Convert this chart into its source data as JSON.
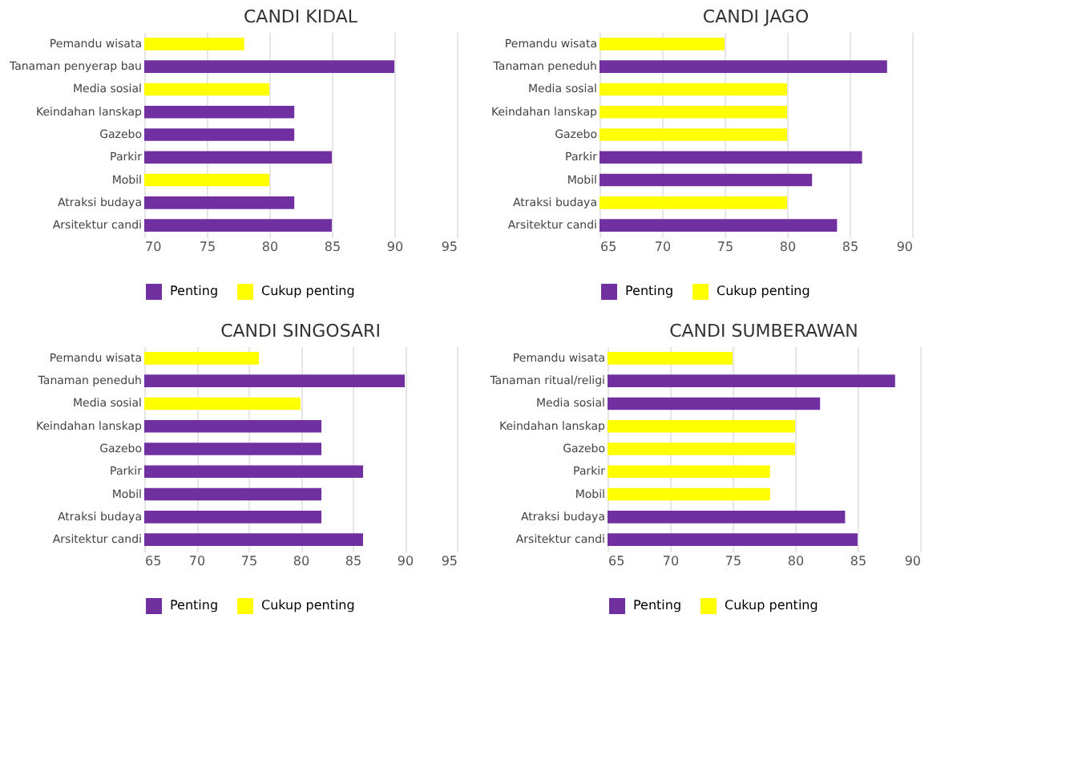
{
  "chart_data": [
    {
      "type": "bar",
      "orientation": "horizontal",
      "stacked": true,
      "title": "CANDI KIDAL",
      "categories": [
        "Pemandu wisata",
        "Tanaman penyerap bau",
        "Media sosial",
        "Keindahan lanskap",
        "Gazebo",
        "Parkir",
        "Mobil",
        "Atraksi budaya",
        "Arsitektur candi"
      ],
      "series": [
        {
          "name": "Penting",
          "color": "#7030a0",
          "values": [
            null,
            90,
            null,
            82,
            82,
            85,
            null,
            82,
            85
          ]
        },
        {
          "name": "Cukup penting",
          "color": "#ffff00",
          "values": [
            78,
            null,
            80,
            null,
            null,
            null,
            80,
            null,
            null
          ]
        }
      ],
      "xlim": [
        70,
        95
      ],
      "xticks": [
        70,
        75,
        80,
        85,
        90,
        95
      ],
      "grid": "x",
      "legend": "bottom"
    },
    {
      "type": "bar",
      "orientation": "horizontal",
      "stacked": true,
      "title": "CANDI JAGO",
      "categories": [
        "Pemandu wisata",
        "Tanaman peneduh",
        "Media sosial",
        "Keindahan lanskap",
        "Gazebo",
        "Parkir",
        "Mobil",
        "Atraksi budaya",
        "Arsitektur candi"
      ],
      "series": [
        {
          "name": "Penting",
          "color": "#7030a0",
          "values": [
            null,
            88,
            null,
            null,
            null,
            86,
            82,
            null,
            84
          ]
        },
        {
          "name": "Cukup penting",
          "color": "#ffff00",
          "values": [
            75,
            null,
            80,
            80,
            80,
            null,
            null,
            80,
            null
          ]
        }
      ],
      "xlim": [
        65,
        90
      ],
      "xticks": [
        65,
        70,
        75,
        80,
        85,
        90
      ],
      "grid": "x",
      "legend": "bottom"
    },
    {
      "type": "bar",
      "orientation": "horizontal",
      "stacked": true,
      "title": "CANDI SINGOSARI",
      "categories": [
        "Pemandu wisata",
        "Tanaman peneduh",
        "Media sosial",
        "Keindahan lanskap",
        "Gazebo",
        "Parkir",
        "Mobil",
        "Atraksi budaya",
        "Arsitektur candi"
      ],
      "series": [
        {
          "name": "Penting",
          "color": "#7030a0",
          "values": [
            null,
            90,
            null,
            82,
            82,
            86,
            82,
            82,
            86
          ]
        },
        {
          "name": "Cukup penting",
          "color": "#ffff00",
          "values": [
            76,
            null,
            80,
            null,
            null,
            null,
            null,
            null,
            null
          ]
        }
      ],
      "xlim": [
        65,
        95
      ],
      "xticks": [
        65,
        70,
        75,
        80,
        85,
        90,
        95
      ],
      "grid": "x",
      "legend": "bottom"
    },
    {
      "type": "bar",
      "orientation": "horizontal",
      "stacked": true,
      "title": "CANDI SUMBERAWAN",
      "categories": [
        "Pemandu wisata",
        "Tanaman ritual/religi",
        "Media sosial",
        "Keindahan lanskap",
        "Gazebo",
        "Parkir",
        "Mobil",
        "Atraksi budaya",
        "Arsitektur candi"
      ],
      "series": [
        {
          "name": "Penting",
          "color": "#7030a0",
          "values": [
            null,
            88,
            82,
            null,
            null,
            null,
            null,
            84,
            85
          ]
        },
        {
          "name": "Cukup penting",
          "color": "#ffff00",
          "values": [
            75,
            null,
            null,
            80,
            80,
            78,
            78,
            null,
            null
          ]
        }
      ],
      "xlim": [
        65,
        90
      ],
      "xticks": [
        65,
        70,
        75,
        80,
        85,
        90
      ],
      "grid": "x",
      "legend": "bottom"
    }
  ]
}
